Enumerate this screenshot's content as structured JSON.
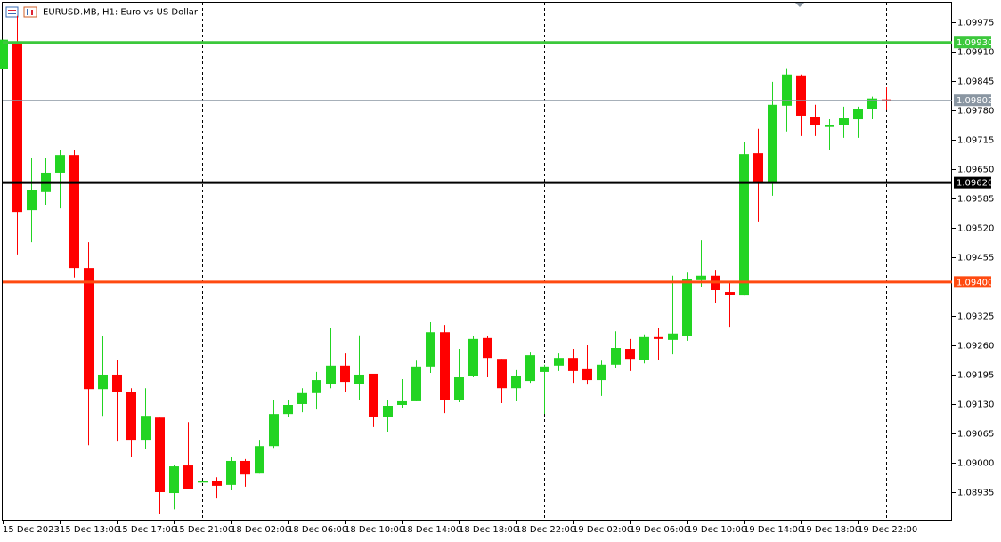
{
  "chart_data": {
    "type": "candlestick",
    "title": "EURUSD.MB, H1: Euro vs US Dollar",
    "categories": [
      "15 Dec 2023",
      null,
      null,
      null,
      "15 Dec 13:00",
      null,
      null,
      null,
      "15 Dec 17:00",
      null,
      null,
      null,
      "15 Dec 21:00",
      null,
      null,
      null,
      "18 Dec 02:00",
      null,
      null,
      null,
      "18 Dec 06:00",
      null,
      null,
      null,
      "18 Dec 10:00",
      null,
      null,
      null,
      "18 Dec 14:00",
      null,
      null,
      null,
      "18 Dec 18:00",
      null,
      null,
      null,
      "18 Dec 22:00",
      null,
      null,
      null,
      "19 Dec 02:00",
      null,
      null,
      null,
      "19 Dec 06:00",
      null,
      null,
      null,
      "19 Dec 10:00",
      null,
      null,
      null,
      "19 Dec 14:00",
      null,
      null,
      null,
      "19 Dec 18:00",
      null,
      null,
      null,
      "19 Dec 22:00",
      null,
      null
    ],
    "open": [
      1.09871,
      1.09932,
      1.09559,
      1.09599,
      1.09642,
      1.09681,
      1.09431,
      1.09163,
      1.09195,
      1.09156,
      1.09051,
      1.091,
      1.08933,
      1.08994,
      1.08959,
      1.0896,
      1.08951,
      1.09004,
      1.08976,
      1.09037,
      1.09108,
      1.0913,
      1.09154,
      1.09175,
      1.09215,
      1.09175,
      1.09197,
      1.09102,
      1.09128,
      1.09136,
      1.09213,
      1.09289,
      1.09138,
      1.09191,
      1.09276,
      1.0923,
      1.09165,
      1.09181,
      1.09201,
      1.09215,
      1.09232,
      1.09207,
      1.09183,
      1.09217,
      1.09252,
      1.09228,
      1.09278,
      1.09272,
      1.0928,
      1.09404,
      1.09414,
      1.09378,
      1.0937,
      1.09685,
      1.0962,
      1.0979,
      1.09857,
      1.09766,
      1.09743,
      1.09748,
      1.0976,
      1.09782,
      1.09804
    ],
    "high": [
      1.09936,
      1.09989,
      1.09674,
      1.09674,
      1.09693,
      1.09693,
      1.09488,
      1.0928,
      1.09228,
      1.09165,
      1.09165,
      1.091,
      1.08996,
      1.0909,
      1.0896,
      1.08968,
      1.09012,
      1.09008,
      1.09051,
      1.09138,
      1.09138,
      1.09165,
      1.09201,
      1.09299,
      1.09242,
      1.09282,
      1.09197,
      1.09138,
      1.09185,
      1.09226,
      1.09311,
      1.09305,
      1.09252,
      1.0928,
      1.0928,
      1.0923,
      1.09205,
      1.09244,
      1.09217,
      1.09242,
      1.09252,
      1.0926,
      1.09226,
      1.09291,
      1.09274,
      1.09284,
      1.09299,
      1.09414,
      1.09421,
      1.09492,
      1.09427,
      1.09398,
      1.09709,
      1.09739,
      1.09843,
      1.09873,
      1.09859,
      1.09792,
      1.0976,
      1.09788,
      1.09788,
      1.0981,
      1.09831
    ],
    "low": [
      1.09871,
      1.09461,
      1.09488,
      1.09571,
      1.09563,
      1.0941,
      1.09039,
      1.09104,
      1.09047,
      1.09012,
      1.09031,
      1.08886,
      1.08897,
      1.08941,
      1.08959,
      1.08921,
      1.08939,
      1.08947,
      1.08976,
      1.09033,
      1.09102,
      1.09112,
      1.09118,
      1.09165,
      1.09157,
      1.09138,
      1.09079,
      1.09069,
      1.09122,
      1.09136,
      1.09199,
      1.0911,
      1.09134,
      1.09189,
      1.09189,
      1.09132,
      1.09136,
      1.09177,
      1.09108,
      1.09203,
      1.09177,
      1.09173,
      1.09148,
      1.09209,
      1.09203,
      1.0922,
      1.09228,
      1.0924,
      1.0927,
      1.09388,
      1.09354,
      1.09301,
      1.0937,
      1.09534,
      1.09591,
      1.09733,
      1.09723,
      1.09723,
      1.09693,
      1.09719,
      1.09719,
      1.0976,
      1.0978
    ],
    "close": [
      1.09936,
      1.09555,
      1.09603,
      1.09642,
      1.09681,
      1.09431,
      1.09163,
      1.09195,
      1.09157,
      1.09051,
      1.09104,
      1.08935,
      1.08992,
      1.08941,
      1.08959,
      1.08949,
      1.09004,
      1.08974,
      1.09037,
      1.09108,
      1.09128,
      1.09154,
      1.09183,
      1.09215,
      1.09179,
      1.09195,
      1.09102,
      1.09126,
      1.09136,
      1.09213,
      1.09289,
      1.09138,
      1.09189,
      1.09274,
      1.09232,
      1.09165,
      1.09193,
      1.09238,
      1.09213,
      1.09232,
      1.09203,
      1.09183,
      1.09217,
      1.09254,
      1.0923,
      1.09278,
      1.09274,
      1.09286,
      1.09406,
      1.09414,
      1.09382,
      1.09372,
      1.09683,
      1.0962,
      1.09792,
      1.09859,
      1.09768,
      1.09748,
      1.09748,
      1.09762,
      1.09782,
      1.09806,
      1.09802
    ],
    "up_color": "#22d422",
    "down_color": "#ff0000",
    "ylim": [
      1.08872,
      1.1002
    ],
    "yticks": [
      1.09975,
      {
        "value": 1.0991,
        "label": "1.09910"
      },
      1.09845,
      {
        "value": 1.0978,
        "label": "1.09780"
      },
      1.09715,
      {
        "value": 1.0965,
        "label": "1.09650"
      },
      1.09585,
      {
        "value": 1.0952,
        "label": "1.09520"
      },
      1.09455,
      1.09325,
      {
        "value": 1.0926,
        "label": "1.09260"
      },
      1.09195,
      {
        "value": 1.0913,
        "label": "1.09130"
      },
      1.09065,
      {
        "value": 1.09,
        "label": "1.09000"
      },
      1.08935
    ],
    "levels": [
      {
        "value": 1.0993,
        "label": "1.09930",
        "color": "#3cc83c"
      },
      {
        "value": 1.0962,
        "label": "1.09620",
        "color": "#000000"
      },
      {
        "value": 1.094,
        "label": "1.09400",
        "color": "#ff4a10"
      }
    ],
    "current_price": {
      "value": 1.09802,
      "label": "1.09802",
      "color": "#8a96a2"
    }
  }
}
